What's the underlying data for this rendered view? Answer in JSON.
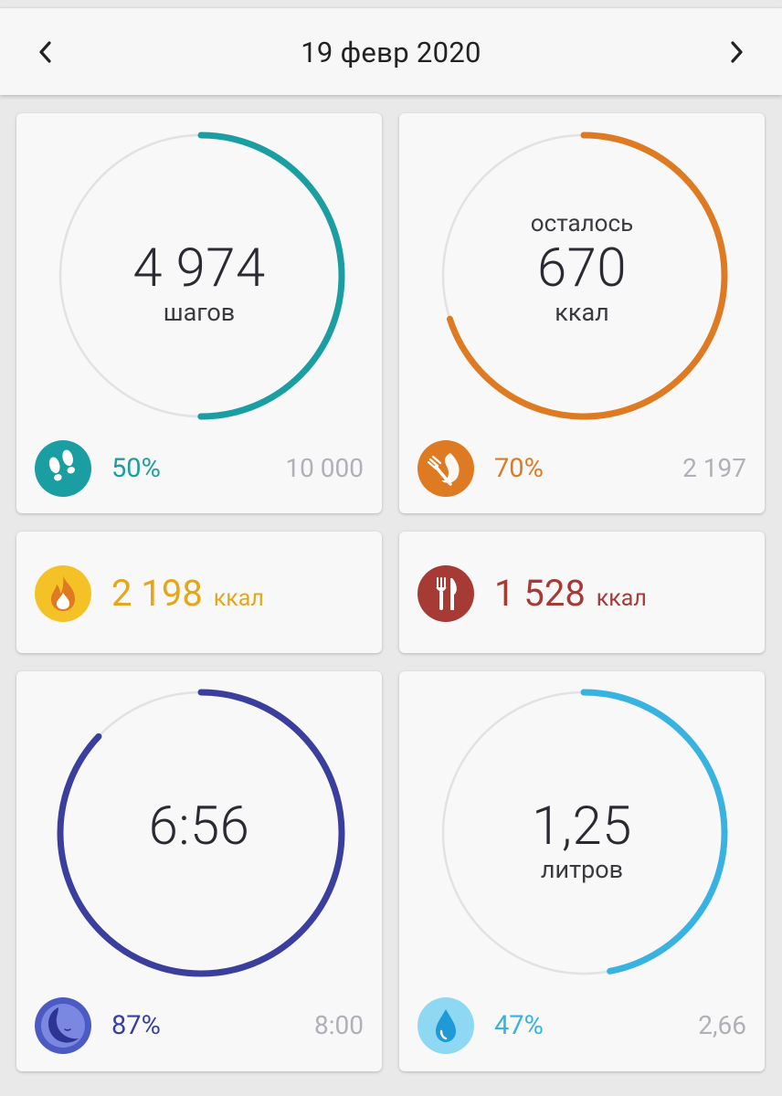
{
  "header": {
    "date": "19 февр 2020"
  },
  "colors": {
    "steps": "#1a9ea2",
    "calories": "#de7a22",
    "burned": "#e5a619",
    "eaten": "#a63a35",
    "sleep": "#3a3f9e",
    "water": "#38b2e0",
    "track": "#e2e2e5"
  },
  "steps": {
    "value": "4 974",
    "unit": "шагов",
    "percent": "50%",
    "goal": "10 000",
    "progress": 0.5,
    "icon": "footprints-icon"
  },
  "calories": {
    "top_label": "осталось",
    "value": "670",
    "unit": "ккал",
    "percent": "70%",
    "goal": "2 197",
    "progress": 0.7,
    "icon": "fork-flame-icon"
  },
  "burned": {
    "value": "2 198",
    "unit": "ккал",
    "icon": "flame-icon"
  },
  "eaten": {
    "value": "1 528",
    "unit": "ккал",
    "icon": "fork-knife-icon"
  },
  "sleep": {
    "value": "6:56",
    "percent": "87%",
    "goal": "8:00",
    "progress": 0.87,
    "icon": "moon-icon"
  },
  "water": {
    "value": "1,25",
    "unit": "литров",
    "percent": "47%",
    "goal": "2,66",
    "progress": 0.47,
    "icon": "water-drop-icon"
  }
}
